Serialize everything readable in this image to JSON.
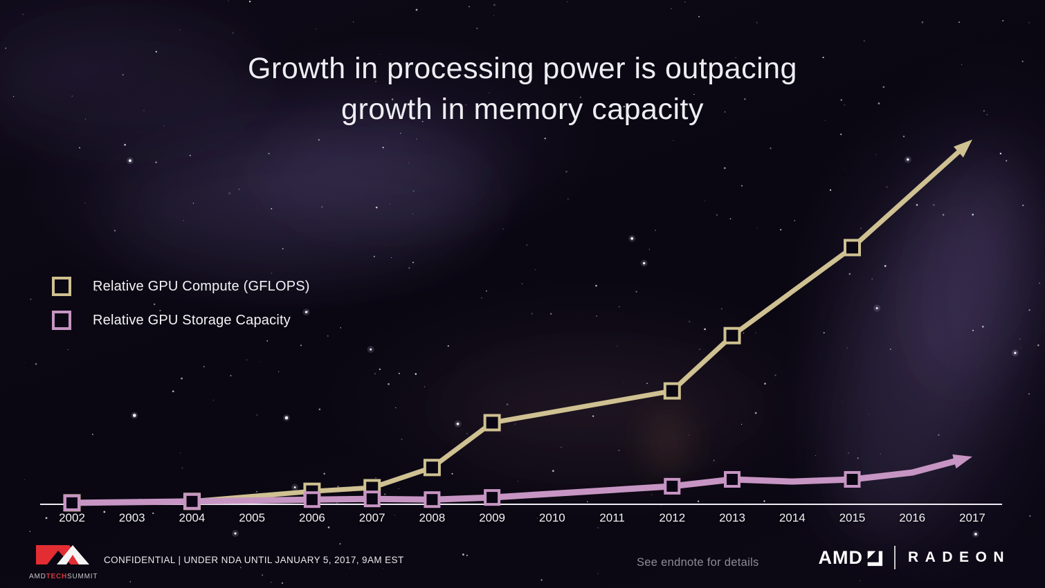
{
  "title": {
    "line1": "Growth in processing power is outpacing",
    "line2": "growth in memory capacity"
  },
  "legend": {
    "items": [
      {
        "label": "Relative GPU Compute (GFLOPS)",
        "color": "#cfc191"
      },
      {
        "label": "Relative GPU Storage Capacity",
        "color": "#c795c3"
      }
    ]
  },
  "chart_data": {
    "type": "line",
    "title": "",
    "xlabel": "",
    "ylabel": "",
    "x_ticks": [
      "2002",
      "2003",
      "2004",
      "2005",
      "2006",
      "2007",
      "2008",
      "2009",
      "2010",
      "2011",
      "2012",
      "2013",
      "2014",
      "2015",
      "2016",
      "2017"
    ],
    "x_range": [
      2002,
      2017
    ],
    "ylim": [
      0,
      105
    ],
    "grid": false,
    "y_axis_shown": false,
    "legend_position": "middle-left",
    "units": "relative units (2017 compute arrow tip = 100)",
    "axis_color": "#efedf3",
    "series": [
      {
        "id": "compute",
        "name": "Relative GPU Compute (GFLOPS)",
        "color": "#cfc191",
        "marker": "open-square",
        "arrow_end": true,
        "points": [
          {
            "x": 2002,
            "y": 0.4,
            "m": true
          },
          {
            "x": 2004,
            "y": 0.8,
            "m": true
          },
          {
            "x": 2006,
            "y": 3.6,
            "m": true
          },
          {
            "x": 2007,
            "y": 4.6,
            "m": true
          },
          {
            "x": 2008,
            "y": 10.2,
            "m": true
          },
          {
            "x": 2009,
            "y": 22.6,
            "m": true
          },
          {
            "x": 2012,
            "y": 31.4,
            "m": true
          },
          {
            "x": 2013,
            "y": 46.7,
            "m": true
          },
          {
            "x": 2015,
            "y": 71.1,
            "m": true
          },
          {
            "x": 2017,
            "y": 101,
            "m": false
          }
        ]
      },
      {
        "id": "storage",
        "name": "Relative GPU Storage Capacity",
        "color": "#c795c3",
        "marker": "open-square",
        "arrow_end": true,
        "points": [
          {
            "x": 2002,
            "y": 0.4,
            "m": true
          },
          {
            "x": 2004,
            "y": 0.8,
            "m": true
          },
          {
            "x": 2006,
            "y": 1.3,
            "m": true
          },
          {
            "x": 2007,
            "y": 1.5,
            "m": true
          },
          {
            "x": 2008,
            "y": 1.3,
            "m": true
          },
          {
            "x": 2009,
            "y": 1.9,
            "m": true
          },
          {
            "x": 2012,
            "y": 5.0,
            "m": true
          },
          {
            "x": 2013,
            "y": 6.9,
            "m": true
          },
          {
            "x": 2014,
            "y": 6.3,
            "m": false
          },
          {
            "x": 2015,
            "y": 6.9,
            "m": true
          },
          {
            "x": 2016,
            "y": 8.8,
            "m": false
          },
          {
            "x": 2017,
            "y": 13.2,
            "m": false
          }
        ]
      }
    ]
  },
  "footer": {
    "logo": {
      "part1": "AMD",
      "part2": "TECH",
      "part3": "SUMMIT"
    },
    "confidential": "CONFIDENTIAL | UNDER NDA UNTIL JANUARY 5, 2017, 9AM EST",
    "endnote": "See endnote for details",
    "brand": {
      "amd": "AMD",
      "radeon": "RADEON"
    }
  }
}
